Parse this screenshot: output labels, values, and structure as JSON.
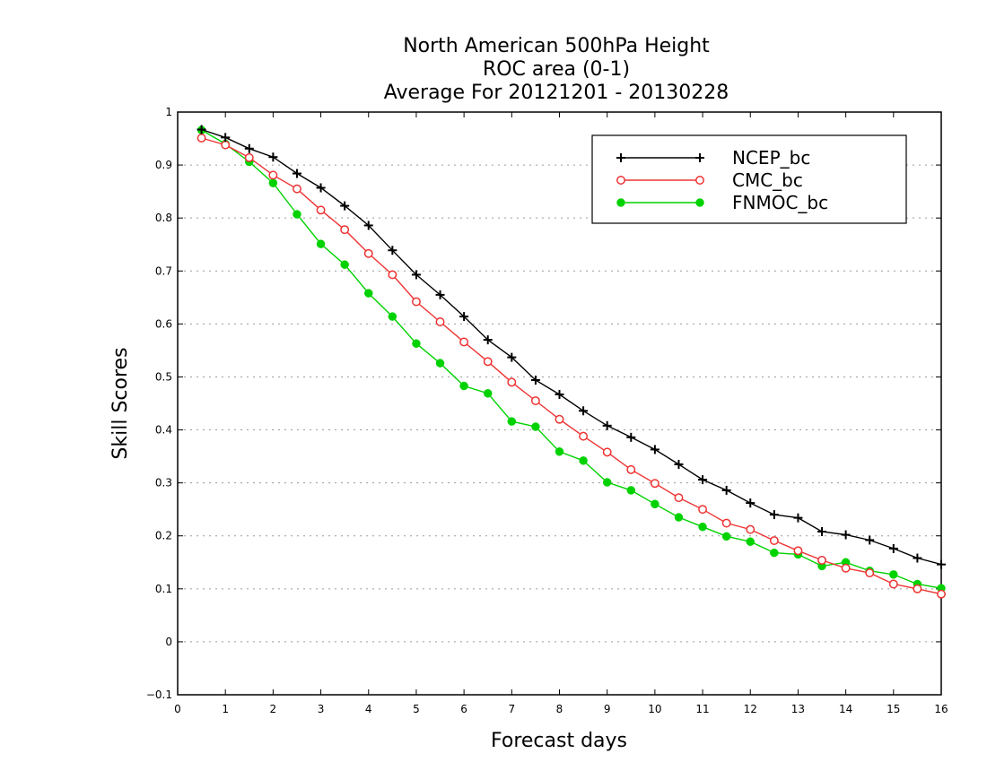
{
  "chart_data": {
    "type": "line",
    "title_lines": [
      "North American 500hPa Height",
      "ROC area (0-1)",
      "Average For 20121201 - 20130228"
    ],
    "xlabel": "Forecast days",
    "ylabel": "Skill Scores",
    "xlim": [
      0,
      16
    ],
    "ylim": [
      -0.1,
      1
    ],
    "x_ticks": [
      "0",
      "1",
      "2",
      "3",
      "4",
      "5",
      "6",
      "7",
      "8",
      "9",
      "10",
      "11",
      "12",
      "13",
      "14",
      "15",
      "16"
    ],
    "y_ticks": [
      "−0.1",
      "0",
      "0.1",
      "0.2",
      "0.3",
      "0.4",
      "0.5",
      "0.6",
      "0.7",
      "0.8",
      "0.9",
      "1"
    ],
    "grid": "horizontal dotted",
    "legend_position": "top-right",
    "x": [
      0.5,
      1,
      1.5,
      2,
      2.5,
      3,
      3.5,
      4,
      4.5,
      5,
      5.5,
      6,
      6.5,
      7,
      7.5,
      8,
      8.5,
      9,
      9.5,
      10,
      10.5,
      11,
      11.5,
      12,
      12.5,
      13,
      13.5,
      14,
      14.5,
      15,
      15.5,
      16
    ],
    "series": [
      {
        "name": "NCEP_bc",
        "color": "#000000",
        "marker": "plus",
        "values": [
          0.967,
          0.952,
          0.931,
          0.915,
          0.884,
          0.857,
          0.823,
          0.786,
          0.739,
          0.693,
          0.655,
          0.614,
          0.57,
          0.537,
          0.494,
          0.467,
          0.436,
          0.408,
          0.386,
          0.363,
          0.335,
          0.306,
          0.286,
          0.262,
          0.24,
          0.234,
          0.208,
          0.202,
          0.192,
          0.176,
          0.158,
          0.146
        ]
      },
      {
        "name": "CMC_bc",
        "color": "#ee3333",
        "marker": "open-circle",
        "values": [
          0.951,
          0.938,
          0.914,
          0.881,
          0.855,
          0.815,
          0.778,
          0.733,
          0.693,
          0.642,
          0.604,
          0.566,
          0.529,
          0.49,
          0.455,
          0.42,
          0.388,
          0.358,
          0.325,
          0.299,
          0.272,
          0.25,
          0.224,
          0.212,
          0.191,
          0.172,
          0.154,
          0.139,
          0.13,
          0.109,
          0.1,
          0.09
        ]
      },
      {
        "name": "FNMOC_bc",
        "color": "#00d200",
        "marker": "filled-circle",
        "values": [
          0.966,
          0.94,
          0.906,
          0.866,
          0.807,
          0.751,
          0.712,
          0.658,
          0.614,
          0.563,
          0.526,
          0.483,
          0.469,
          0.416,
          0.406,
          0.359,
          0.342,
          0.301,
          0.286,
          0.26,
          0.235,
          0.217,
          0.199,
          0.189,
          0.168,
          0.165,
          0.143,
          0.15,
          0.134,
          0.127,
          0.109,
          0.101
        ]
      }
    ]
  }
}
